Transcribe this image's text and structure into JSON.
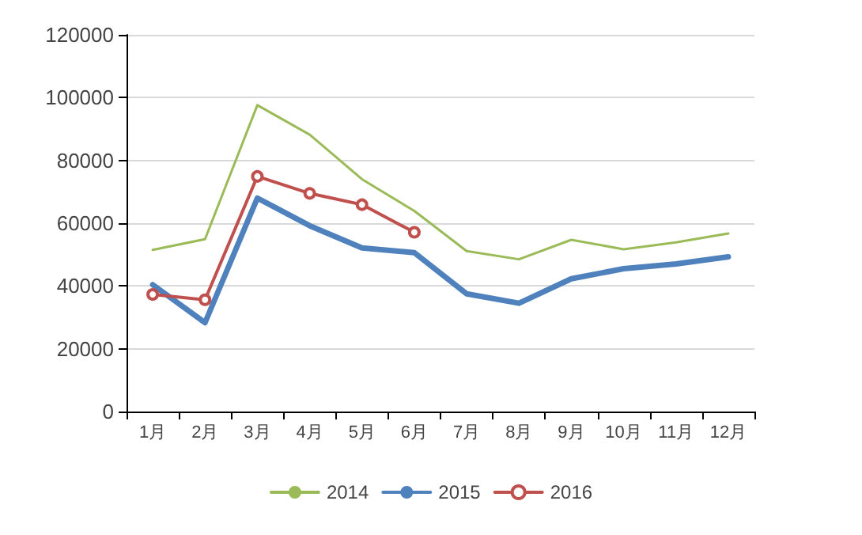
{
  "chart_data": {
    "type": "line",
    "categories": [
      "1月",
      "2月",
      "3月",
      "4月",
      "5月",
      "6月",
      "7月",
      "8月",
      "9月",
      "10月",
      "11月",
      "12月"
    ],
    "series": [
      {
        "name": "2014",
        "color": "#9bbb59",
        "marker": "none",
        "values": [
          51500,
          54900,
          97600,
          88200,
          74000,
          63900,
          51100,
          48500,
          54700,
          51700,
          53900,
          56700
        ]
      },
      {
        "name": "2015",
        "color": "#4f81bd",
        "marker": "none",
        "values": [
          40400,
          28300,
          68000,
          59200,
          52100,
          50600,
          37500,
          34500,
          42300,
          45500,
          47000,
          49300
        ]
      },
      {
        "name": "2016",
        "color": "#c0504d",
        "marker": "circle",
        "values": [
          37300,
          35600,
          74900,
          69500,
          65900,
          57100,
          null,
          null,
          null,
          null,
          null,
          null
        ]
      }
    ],
    "ylim": [
      0,
      120000
    ],
    "yticks": [
      0,
      20000,
      40000,
      60000,
      80000,
      100000,
      120000
    ],
    "grid": "y",
    "legend": "bottom",
    "line_style": "solid"
  }
}
